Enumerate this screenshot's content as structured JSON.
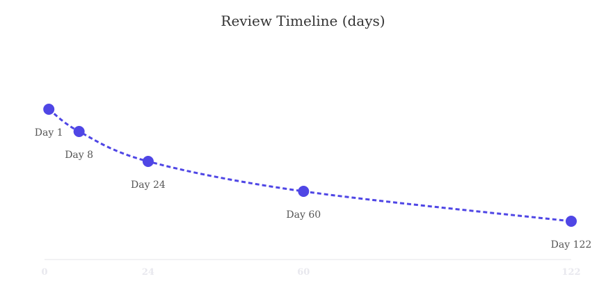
{
  "chart_data": {
    "type": "line",
    "title": "Review Timeline (days)",
    "xlabel": "",
    "ylabel": "",
    "x_ticks": [
      0,
      24,
      60,
      122
    ],
    "xlim": [
      0,
      122
    ],
    "series": [
      {
        "points": [
          {
            "day": 1,
            "label": "Day 1"
          },
          {
            "day": 8,
            "label": "Day 8"
          },
          {
            "day": 24,
            "label": "Day 24"
          },
          {
            "day": 60,
            "label": "Day 60"
          },
          {
            "day": 122,
            "label": "Day 122"
          }
        ]
      }
    ],
    "line_style": "dotted",
    "color": "#4f46e5",
    "grid": false,
    "legend": "none"
  }
}
